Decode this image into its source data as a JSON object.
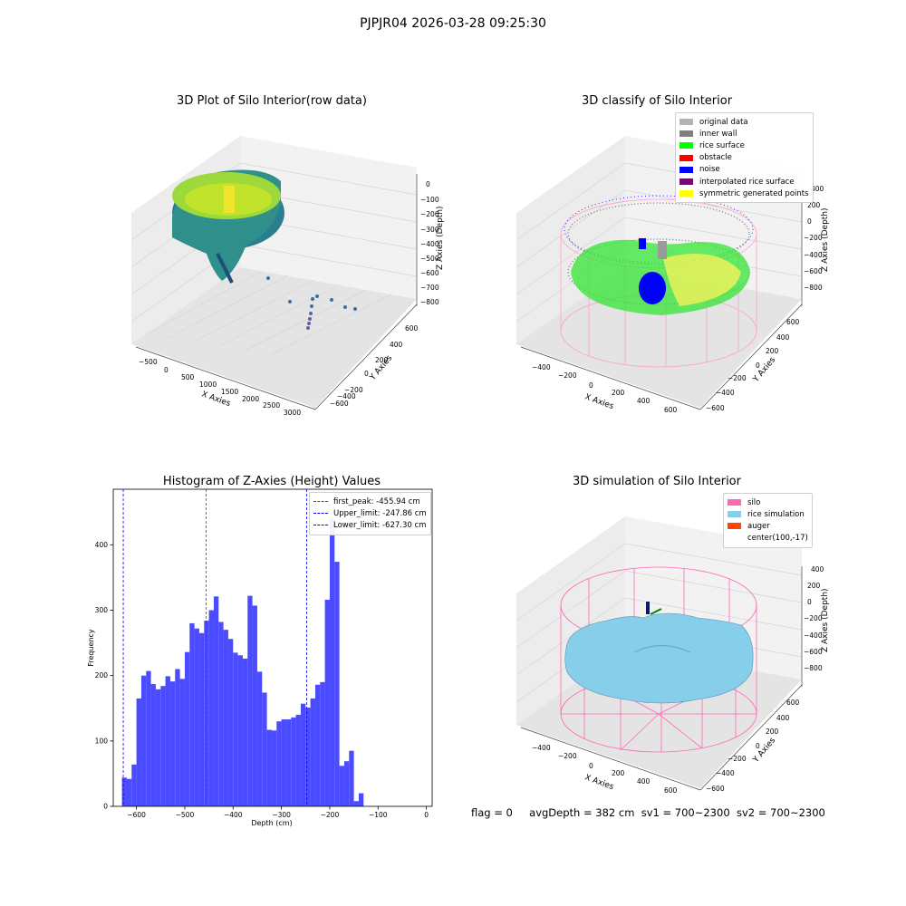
{
  "figure": {
    "suptitle": "PJPJR04 2026-03-28 09:25:30",
    "status": {
      "flag": "flag = 0",
      "avg": "avgDepth = 382 cm",
      "sv1": "sv1 = 700~2300",
      "sv2": "sv2 = 700~2300"
    }
  },
  "plot1": {
    "title": "3D Plot of Silo Interior(row data)",
    "xlabel": "X Axies",
    "ylabel": "Y Axies",
    "zlabel": "Z Axies (Depth)",
    "xticks": [
      "−500",
      "0",
      "500",
      "1000",
      "1500",
      "2000",
      "2500",
      "3000"
    ],
    "yticks": [
      "600",
      "400",
      "200",
      "0",
      "−200",
      "−400",
      "−600"
    ],
    "zticks": [
      "0",
      "−100",
      "−200",
      "−300",
      "−400",
      "−500",
      "−600",
      "−700",
      "−800"
    ]
  },
  "plot2": {
    "title": "3D classify of Silo Interior",
    "xlabel": "X Axies",
    "ylabel": "Y Axies",
    "zlabel": "Z Axies (Depth)",
    "xticks": [
      "−400",
      "−200",
      "0",
      "200",
      "400",
      "600"
    ],
    "yticks": [
      "600",
      "400",
      "200",
      "0",
      "−200",
      "−400",
      "−600"
    ],
    "zticks": [
      "400",
      "200",
      "0",
      "−200",
      "−400",
      "−600",
      "−800"
    ],
    "legend": [
      {
        "label": "original data",
        "color": "#b3b3b3"
      },
      {
        "label": "inner wall",
        "color": "#808080"
      },
      {
        "label": "rice surface",
        "color": "#00ff00"
      },
      {
        "label": "obstacle",
        "color": "#ff0000"
      },
      {
        "label": "noise",
        "color": "#0000ff"
      },
      {
        "label": "interpolated rice surface",
        "color": "#800080"
      },
      {
        "label": "symmetric generated points",
        "color": "#ffff00"
      }
    ]
  },
  "plot4": {
    "title": "3D simulation of Silo Interior",
    "xlabel": "X Axies",
    "ylabel": "Y Axies",
    "zlabel": "Z Axies (Depth)",
    "xticks": [
      "−400",
      "−200",
      "0",
      "200",
      "400",
      "600"
    ],
    "yticks": [
      "600",
      "400",
      "200",
      "0",
      "−200",
      "−400",
      "−600"
    ],
    "zticks": [
      "400",
      "200",
      "0",
      "−200",
      "−400",
      "−600",
      "−800"
    ],
    "legend": [
      {
        "label": "silo",
        "color": "#ff69b4"
      },
      {
        "label": "rice simulation",
        "color": "#87ceeb"
      },
      {
        "label": "auger",
        "color": "#ff4500"
      },
      {
        "label": "center(100,-17)",
        "color": ""
      }
    ]
  },
  "chart_data": {
    "type": "bar",
    "title": "Histogram of Z-Axies (Height) Values",
    "xlabel": "Depth (cm)",
    "ylabel": "Frequency",
    "xlim": [
      -648,
      12
    ],
    "ylim": [
      0,
      485
    ],
    "xticks": [
      -600,
      -500,
      -400,
      -300,
      -200,
      -100,
      0
    ],
    "yticks": [
      0,
      100,
      200,
      300,
      400
    ],
    "bar_color": "#4b4bff",
    "bin_start": -630,
    "bin_width": 10,
    "values": [
      44,
      42,
      64,
      165,
      200,
      207,
      187,
      179,
      184,
      199,
      191,
      210,
      195,
      236,
      280,
      272,
      265,
      284,
      300,
      321,
      282,
      270,
      256,
      235,
      231,
      226,
      322,
      307,
      206,
      174,
      117,
      116,
      130,
      133,
      133,
      136,
      140,
      157,
      151,
      165,
      186,
      190,
      316,
      440,
      374,
      62,
      69,
      85,
      8,
      20
    ],
    "vlines": [
      {
        "label": "first_peak: -455.94 cm",
        "x": -455.94,
        "color": "#ff0000"
      },
      {
        "label": "Upper_limit: -247.86 cm",
        "x": -247.86,
        "color": "#0000ff"
      },
      {
        "label": "Lower_limit: -627.30 cm",
        "x": -627.3,
        "color": "#0000ff"
      }
    ]
  }
}
